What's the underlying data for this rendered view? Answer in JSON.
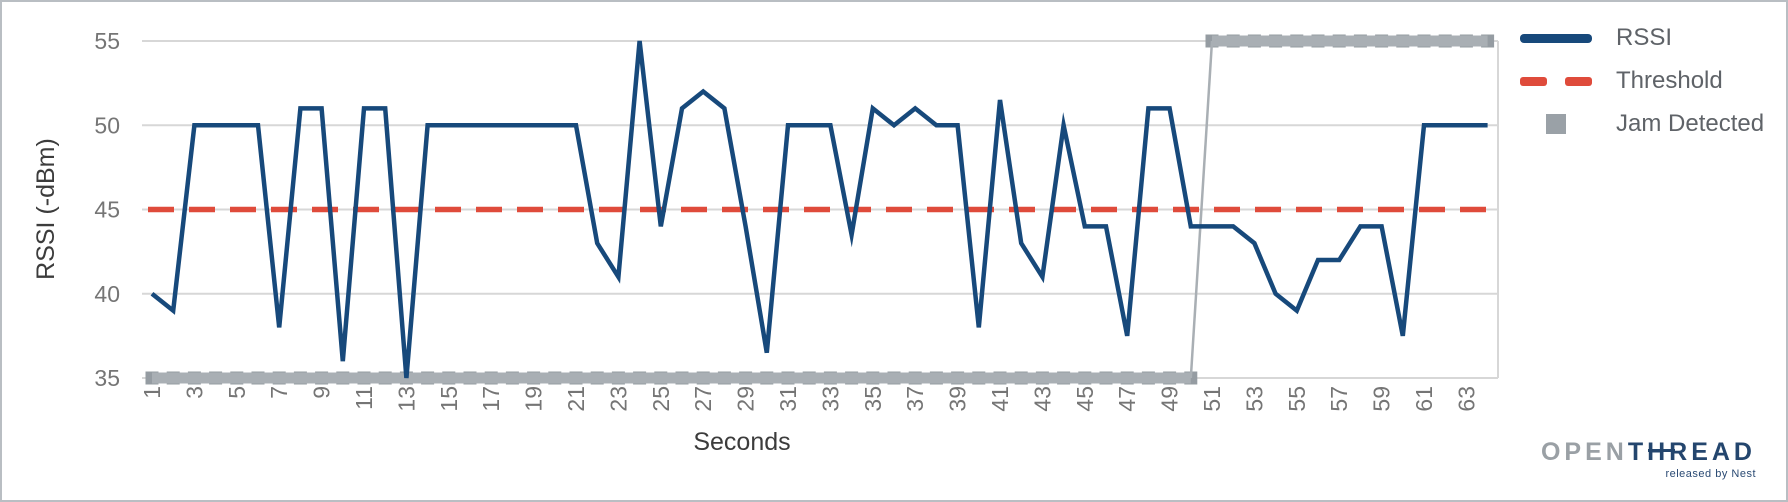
{
  "chart_data": {
    "type": "line",
    "title": "",
    "xlabel": "Seconds",
    "ylabel": "RSSI (-dBm)",
    "ylim": [
      35,
      55
    ],
    "y_ticks": [
      35,
      40,
      45,
      50,
      55
    ],
    "x_tick_labels": [
      "1",
      "3",
      "5",
      "7",
      "9",
      "11",
      "13",
      "15",
      "17",
      "19",
      "21",
      "23",
      "25",
      "27",
      "29",
      "31",
      "33",
      "35",
      "37",
      "39",
      "41",
      "43",
      "45",
      "47",
      "49",
      "51",
      "53",
      "55",
      "57",
      "59",
      "61",
      "63"
    ],
    "grid": true,
    "legend_position": "right",
    "series": [
      {
        "name": "RSSI",
        "type": "line",
        "color": "#17497b",
        "values": [
          40,
          39,
          50,
          50,
          50,
          50,
          38,
          51,
          51,
          36,
          51,
          51,
          35,
          50,
          50,
          50,
          50,
          50,
          50,
          50,
          50,
          43,
          41,
          55,
          44,
          51,
          52,
          51,
          44,
          36.5,
          50,
          50,
          50,
          43.5,
          51,
          50,
          51,
          50,
          50,
          38,
          51.5,
          43,
          41,
          50,
          44,
          44,
          37.5,
          51,
          51,
          44,
          44,
          44,
          43,
          40,
          39,
          42,
          42,
          44,
          44,
          37.5,
          50,
          50,
          50,
          50
        ]
      },
      {
        "name": "Threshold",
        "type": "dashed-line",
        "color": "#df4b3b",
        "value": 45
      },
      {
        "name": "Jam Detected",
        "type": "square-marker-line",
        "color": "#a9afb4",
        "marker_color": "#959ca2",
        "values": [
          35,
          35,
          35,
          35,
          35,
          35,
          35,
          35,
          35,
          35,
          35,
          35,
          35,
          35,
          35,
          35,
          35,
          35,
          35,
          35,
          35,
          35,
          35,
          35,
          35,
          35,
          35,
          35,
          35,
          35,
          35,
          35,
          35,
          35,
          35,
          35,
          35,
          35,
          35,
          35,
          35,
          35,
          35,
          35,
          35,
          35,
          35,
          35,
          35,
          35,
          55,
          55,
          55,
          55,
          55,
          55,
          55,
          55,
          55,
          55,
          55,
          55,
          55,
          55
        ]
      }
    ],
    "colors": {
      "grid": "#d7d7d7",
      "tick_text": "#757575",
      "axis_title_text": "#3c3c3c",
      "legend_text": "#5f6368"
    }
  },
  "logo": {
    "open": "OPEN",
    "thread": "THREAD",
    "tagline": "released by Nest"
  }
}
